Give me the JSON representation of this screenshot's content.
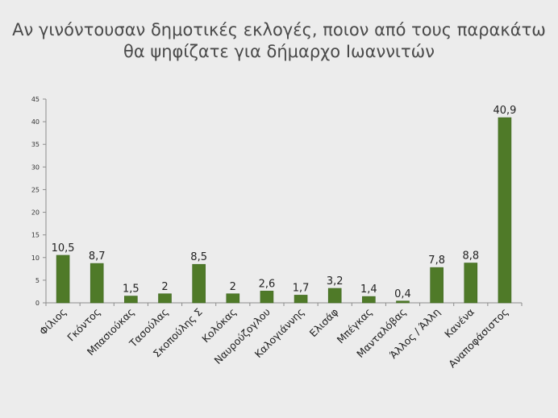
{
  "chart_data": {
    "type": "bar",
    "title_lines": [
      "Αν γινόντουσαν δημοτικές εκλογές, ποιον από τους παρακάτω",
      "θα ψηφίζατε για δήμαρχο Ιωαννιτών"
    ],
    "categories": [
      "Φίλιος",
      "Γκόντος",
      "Μπασιούκας",
      "Τασούλας",
      "Σκοπούλης Σ",
      "Κολόκας",
      "Ναυρούζογλου",
      "Καλογιάννης",
      "Ελισάφ",
      "Μπέγκας",
      "Μανταλόβας",
      "Άλλος / Άλλη",
      "Κανένα",
      "Αναποφάσιστος"
    ],
    "values": [
      10.5,
      8.7,
      1.5,
      2,
      8.5,
      2,
      2.6,
      1.7,
      3.2,
      1.4,
      0.4,
      7.8,
      8.8,
      40.9
    ],
    "value_labels": [
      "10,5",
      "8,7",
      "1,5",
      "2",
      "8,5",
      "2",
      "2,6",
      "1,7",
      "3,2",
      "1,4",
      "0,4",
      "7,8",
      "8,8",
      "40,9"
    ],
    "ylim": [
      0,
      45
    ],
    "yticks": [
      0,
      5,
      10,
      15,
      20,
      25,
      30,
      35,
      40,
      45
    ],
    "grid": false,
    "legend": "none",
    "colors": {
      "bar": "#4f7a28",
      "bar_edge": "#3e6620",
      "axis": "#8c8c8c",
      "background": "#ececec"
    }
  }
}
